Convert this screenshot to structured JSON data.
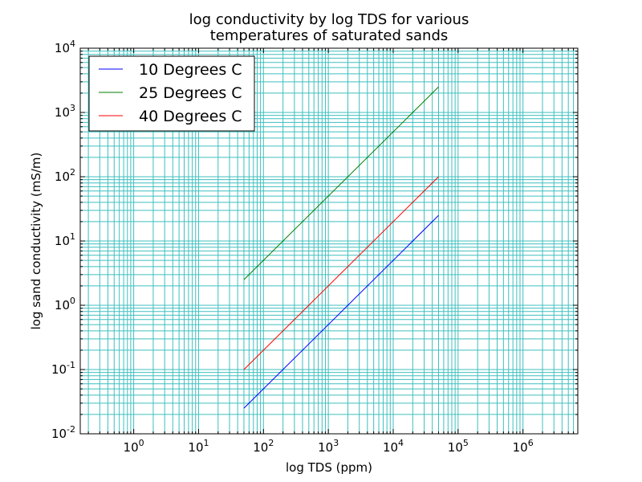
{
  "chart_data": {
    "type": "line",
    "title": [
      "log conductivity by log TDS for various",
      "temperatures of saturated sands"
    ],
    "xlabel": "log TDS (ppm)",
    "ylabel": "log sand conductivity (mS/m)",
    "xscale": "log",
    "yscale": "log",
    "xlim": [
      0.15,
      7000000
    ],
    "ylim": [
      0.01,
      10000
    ],
    "xticks": [
      {
        "value": 1,
        "base": "10",
        "exp": "0"
      },
      {
        "value": 10,
        "base": "10",
        "exp": "1"
      },
      {
        "value": 100,
        "base": "10",
        "exp": "2"
      },
      {
        "value": 1000,
        "base": "10",
        "exp": "3"
      },
      {
        "value": 10000,
        "base": "10",
        "exp": "4"
      },
      {
        "value": 100000,
        "base": "10",
        "exp": "5"
      },
      {
        "value": 1000000,
        "base": "10",
        "exp": "6"
      }
    ],
    "yticks": [
      {
        "value": 0.01,
        "base": "10",
        "exp": "-2"
      },
      {
        "value": 0.1,
        "base": "10",
        "exp": "-1"
      },
      {
        "value": 1,
        "base": "10",
        "exp": "0"
      },
      {
        "value": 10,
        "base": "10",
        "exp": "1"
      },
      {
        "value": 100,
        "base": "10",
        "exp": "2"
      },
      {
        "value": 1000,
        "base": "10",
        "exp": "3"
      },
      {
        "value": 10000,
        "base": "10",
        "exp": "4"
      }
    ],
    "grid": true,
    "grid_color": "#3fbfbf",
    "legend_position": "top-left",
    "series": [
      {
        "name": "10 Degrees C",
        "color": "#0000ff",
        "x": [
          50,
          50000
        ],
        "y": [
          0.025,
          25
        ]
      },
      {
        "name": "25 Degrees C",
        "color": "#008000",
        "x": [
          50,
          50000
        ],
        "y": [
          2.5,
          2500
        ]
      },
      {
        "name": "40 Degrees C",
        "color": "#ff0000",
        "x": [
          50,
          50000
        ],
        "y": [
          0.1,
          100
        ]
      }
    ]
  }
}
